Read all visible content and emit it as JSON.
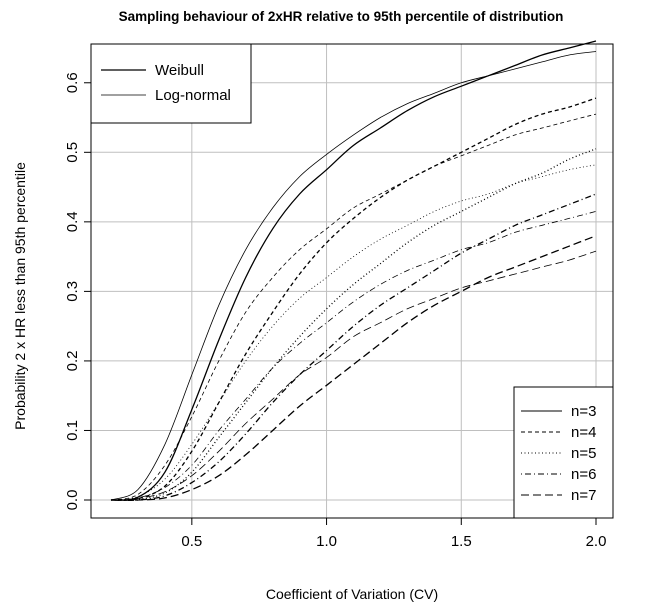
{
  "chart_data": {
    "type": "line",
    "title": "Sampling behaviour of 2xHR relative to 95th percentile of distribution",
    "xlabel": "Coefficient of Variation (CV)",
    "ylabel": "Probability 2 x HR less than 95th percentile",
    "xlim": [
      0.2,
      2.0
    ],
    "ylim": [
      0.0,
      0.65
    ],
    "x_ticks": [
      "0.5",
      "1.0",
      "1.5",
      "2.0"
    ],
    "y_ticks": [
      "0.0",
      "0.1",
      "0.2",
      "0.3",
      "0.4",
      "0.5",
      "0.6"
    ],
    "grid": true,
    "legend_distribution": {
      "placement": "top-left",
      "entries": [
        {
          "label": "Weibull",
          "line_width": 1.3
        },
        {
          "label": "Log-normal",
          "line_width": 0.8
        }
      ]
    },
    "legend_n": {
      "placement": "bottom-right",
      "entries": [
        {
          "label": "n=3",
          "dash": ""
        },
        {
          "label": "n=4",
          "dash": "4,3"
        },
        {
          "label": "n=5",
          "dash": "1,2.5"
        },
        {
          "label": "n=6",
          "dash": "1,3,6,3"
        },
        {
          "label": "n=7",
          "dash": "8,4"
        }
      ]
    },
    "x": [
      0.2,
      0.3,
      0.4,
      0.5,
      0.6,
      0.7,
      0.8,
      0.9,
      1.0,
      1.1,
      1.2,
      1.3,
      1.4,
      1.5,
      1.6,
      1.7,
      1.8,
      1.9,
      2.0
    ],
    "series": [
      {
        "name": "n=3",
        "dist": "Weibull",
        "dash": "",
        "width": 1.3,
        "values": [
          0.0,
          0.004,
          0.04,
          0.13,
          0.23,
          0.32,
          0.39,
          0.44,
          0.475,
          0.51,
          0.535,
          0.56,
          0.58,
          0.595,
          0.61,
          0.625,
          0.64,
          0.65,
          0.66
        ]
      },
      {
        "name": "n=3",
        "dist": "Log-normal",
        "dash": "",
        "width": 0.8,
        "values": [
          0.0,
          0.015,
          0.08,
          0.18,
          0.28,
          0.36,
          0.42,
          0.465,
          0.497,
          0.525,
          0.55,
          0.57,
          0.585,
          0.6,
          0.61,
          0.62,
          0.63,
          0.64,
          0.645
        ]
      },
      {
        "name": "n=4",
        "dist": "Weibull",
        "dash": "4,3",
        "width": 1.3,
        "values": [
          0.0,
          0.002,
          0.02,
          0.07,
          0.14,
          0.21,
          0.27,
          0.325,
          0.37,
          0.405,
          0.435,
          0.46,
          0.48,
          0.5,
          0.52,
          0.54,
          0.555,
          0.565,
          0.578
        ]
      },
      {
        "name": "n=4",
        "dist": "Log-normal",
        "dash": "4,3",
        "width": 0.8,
        "values": [
          0.0,
          0.008,
          0.05,
          0.12,
          0.2,
          0.27,
          0.32,
          0.36,
          0.39,
          0.42,
          0.44,
          0.46,
          0.48,
          0.495,
          0.51,
          0.525,
          0.535,
          0.545,
          0.555
        ]
      },
      {
        "name": "n=5",
        "dist": "Weibull",
        "dash": "1,2.5",
        "width": 1.3,
        "values": [
          0.0,
          0.001,
          0.01,
          0.04,
          0.09,
          0.14,
          0.19,
          0.235,
          0.275,
          0.31,
          0.34,
          0.37,
          0.395,
          0.415,
          0.435,
          0.455,
          0.47,
          0.49,
          0.505
        ]
      },
      {
        "name": "n=5",
        "dist": "Log-normal",
        "dash": "1,2.5",
        "width": 0.8,
        "values": [
          0.0,
          0.005,
          0.03,
          0.08,
          0.14,
          0.2,
          0.25,
          0.29,
          0.32,
          0.35,
          0.375,
          0.395,
          0.415,
          0.43,
          0.44,
          0.455,
          0.465,
          0.475,
          0.482
        ]
      },
      {
        "name": "n=6",
        "dist": "Weibull",
        "dash": "1,3,6,3",
        "width": 1.3,
        "values": [
          0.0,
          0.0,
          0.006,
          0.025,
          0.055,
          0.095,
          0.14,
          0.18,
          0.215,
          0.25,
          0.28,
          0.305,
          0.33,
          0.355,
          0.375,
          0.395,
          0.41,
          0.425,
          0.44
        ]
      },
      {
        "name": "n=6",
        "dist": "Log-normal",
        "dash": "1,3,6,3",
        "width": 0.8,
        "values": [
          0.0,
          0.003,
          0.018,
          0.05,
          0.1,
          0.145,
          0.19,
          0.225,
          0.255,
          0.285,
          0.31,
          0.33,
          0.345,
          0.36,
          0.37,
          0.385,
          0.395,
          0.405,
          0.415
        ]
      },
      {
        "name": "n=7",
        "dist": "Weibull",
        "dash": "8,4",
        "width": 1.3,
        "values": [
          0.0,
          0.0,
          0.003,
          0.015,
          0.035,
          0.065,
          0.1,
          0.135,
          0.165,
          0.195,
          0.225,
          0.255,
          0.28,
          0.3,
          0.32,
          0.335,
          0.35,
          0.365,
          0.38
        ]
      },
      {
        "name": "n=7",
        "dist": "Log-normal",
        "dash": "8,4",
        "width": 0.8,
        "values": [
          0.0,
          0.002,
          0.012,
          0.035,
          0.07,
          0.11,
          0.145,
          0.18,
          0.205,
          0.235,
          0.255,
          0.275,
          0.29,
          0.305,
          0.315,
          0.325,
          0.335,
          0.345,
          0.358
        ]
      }
    ]
  }
}
